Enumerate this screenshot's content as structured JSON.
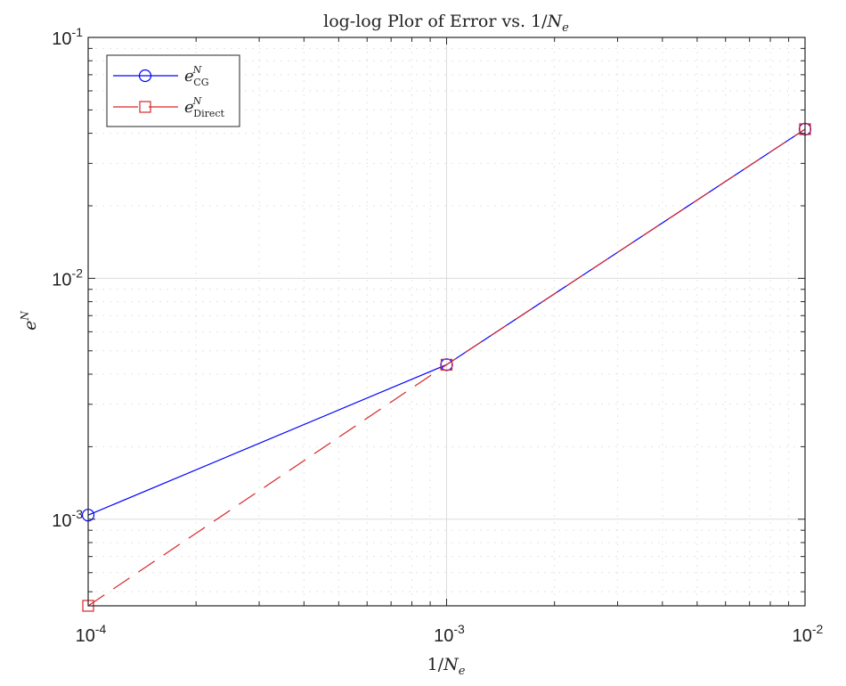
{
  "chart_data": {
    "type": "line",
    "title": {
      "text": "log-log Plor of Error vs. 1/",
      "var": "N",
      "sub": "e"
    },
    "xlabel": {
      "text": "1/",
      "var": "N",
      "sub": "e"
    },
    "ylabel": {
      "var": "e",
      "sup": "N"
    },
    "xscale": "log",
    "yscale": "log",
    "xlim": [
      0.0001,
      0.01
    ],
    "ylim": [
      0.000437,
      0.1
    ],
    "x_ticks": [
      {
        "base": "10",
        "exp": "-4"
      },
      {
        "base": "10",
        "exp": "-3"
      },
      {
        "base": "10",
        "exp": "-2"
      }
    ],
    "y_ticks": [
      {
        "base": "10",
        "exp": "-3"
      },
      {
        "base": "10",
        "exp": "-2"
      },
      {
        "base": "10",
        "exp": "-1"
      }
    ],
    "grid": true,
    "minor_grid": true,
    "legend_position": "top-left",
    "series": [
      {
        "name": "e^N_CG",
        "label_var": "e",
        "label_sup": "N",
        "label_sub": "CG",
        "color": "#0000ff",
        "marker": "circle",
        "linestyle": "solid",
        "x": [
          0.0001,
          0.001,
          0.01
        ],
        "y": [
          0.00104,
          0.00438,
          0.0416
        ]
      },
      {
        "name": "e^N_Direct",
        "label_var": "e",
        "label_sup": "N",
        "label_sub": "Direct",
        "color": "#d62728",
        "marker": "square",
        "linestyle": "dashed",
        "x": [
          0.0001,
          0.001,
          0.01
        ],
        "y": [
          0.000437,
          0.00438,
          0.0416
        ]
      }
    ]
  }
}
